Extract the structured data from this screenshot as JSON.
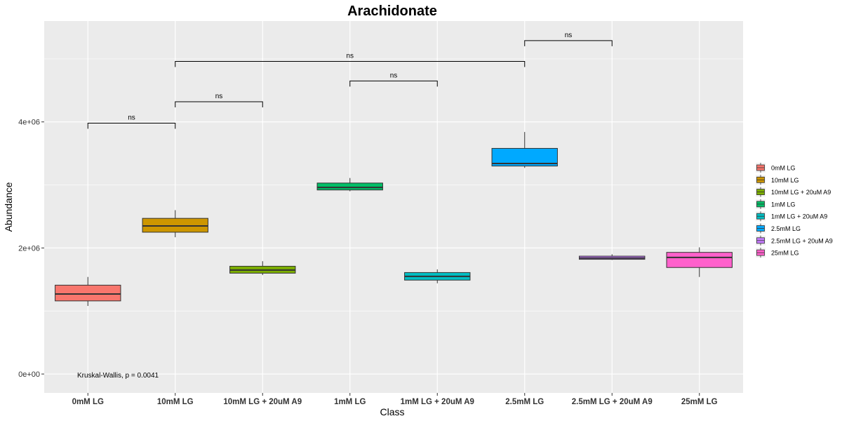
{
  "chart_data": {
    "type": "box",
    "title": "Arachidonate",
    "xlabel": "Class",
    "ylabel": "Abundance",
    "ylim": [
      -300000,
      5600000
    ],
    "y_ticks": [
      0,
      2000000,
      4000000
    ],
    "y_tick_labels": [
      "0e+00",
      "2e+06",
      "4e+06"
    ],
    "grid": true,
    "legend_position": "right",
    "categories": [
      "0mM LG",
      "10mM LG",
      "10mM LG + 20uM A9",
      "1mM LG",
      "1mM LG + 20uM A9",
      "2.5mM LG",
      "2.5mM LG + 20uM A9",
      "25mM LG"
    ],
    "series": [
      {
        "name": "0mM LG",
        "color": "#F8766D",
        "min": 1080000,
        "q1": 1160000,
        "median": 1270000,
        "q3": 1410000,
        "max": 1540000
      },
      {
        "name": "10mM LG",
        "color": "#CD9600",
        "min": 2170000,
        "q1": 2250000,
        "median": 2350000,
        "q3": 2470000,
        "max": 2600000
      },
      {
        "name": "10mM LG + 20uM A9",
        "color": "#7CAE00",
        "min": 1570000,
        "q1": 1600000,
        "median": 1650000,
        "q3": 1710000,
        "max": 1790000
      },
      {
        "name": "1mM LG",
        "color": "#00BE67",
        "min": 2900000,
        "q1": 2920000,
        "median": 2960000,
        "q3": 3030000,
        "max": 3110000
      },
      {
        "name": "1mM LG + 20uM A9",
        "color": "#00BFC4",
        "min": 1440000,
        "q1": 1490000,
        "median": 1550000,
        "q3": 1610000,
        "max": 1660000
      },
      {
        "name": "2.5mM LG",
        "color": "#00A9FF",
        "min": 3270000,
        "q1": 3300000,
        "median": 3340000,
        "q3": 3580000,
        "max": 3840000
      },
      {
        "name": "2.5mM LG + 20uM A9",
        "color": "#C77CFF",
        "min": 1810000,
        "q1": 1820000,
        "median": 1840000,
        "q3": 1870000,
        "max": 1900000
      },
      {
        "name": "25mM LG",
        "color": "#FF61CC",
        "min": 1540000,
        "q1": 1690000,
        "median": 1850000,
        "q3": 1930000,
        "max": 2010000
      }
    ],
    "comparisons": [
      {
        "from": 0,
        "to": 1,
        "y": 3980000,
        "label": "ns"
      },
      {
        "from": 1,
        "to": 2,
        "y": 4320000,
        "label": "ns"
      },
      {
        "from": 1,
        "to": 5,
        "y": 4960000,
        "label": "ns"
      },
      {
        "from": 3,
        "to": 4,
        "y": 4650000,
        "label": "ns"
      },
      {
        "from": 5,
        "to": 6,
        "y": 5290000,
        "label": "ns"
      }
    ],
    "annotation": "Kruskal-Wallis, p = 0.0041"
  }
}
